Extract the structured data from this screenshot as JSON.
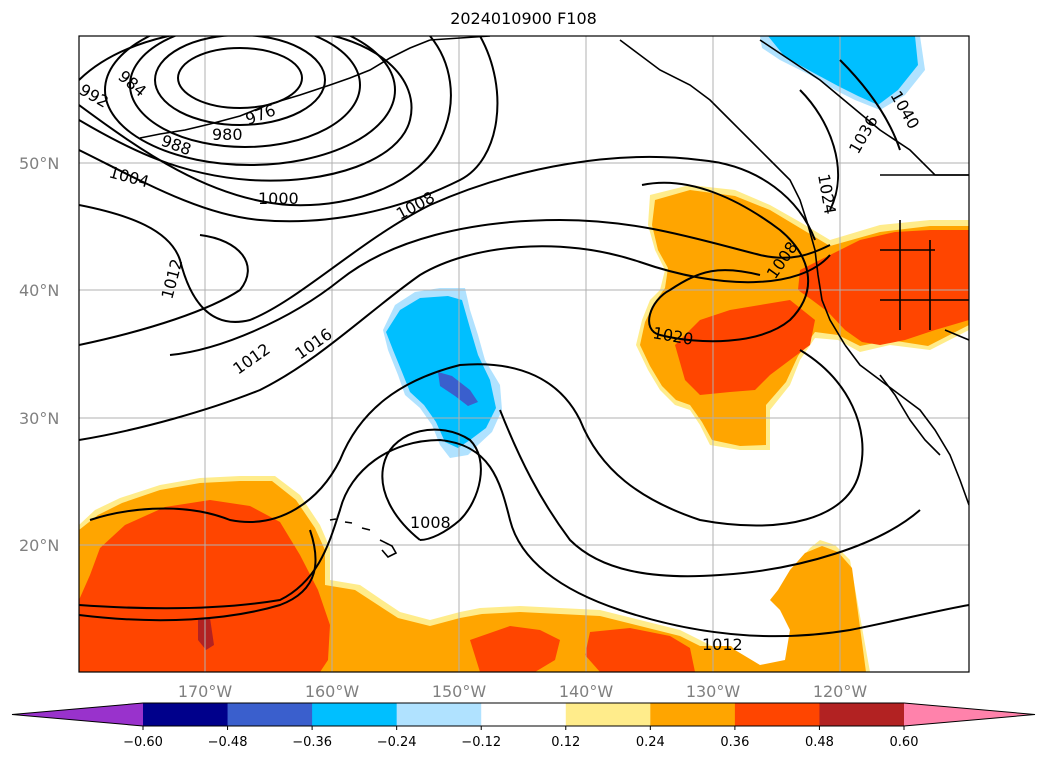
{
  "title": "2024010900 F108",
  "lat_labels": [
    "50°N",
    "40°N",
    "30°N",
    "20°N"
  ],
  "lon_labels": [
    "170°W",
    "160°W",
    "150°W",
    "140°W",
    "130°W",
    "120°W"
  ],
  "colorbar": {
    "ticks": [
      "−0.60",
      "−0.48",
      "−0.36",
      "−0.24",
      "−0.12",
      "0.12",
      "0.24",
      "0.36",
      "0.48",
      "0.60"
    ],
    "colors": [
      "#9932cc",
      "#00008b",
      "#3a5fcd",
      "#00bfff",
      "#b0e2ff",
      "#ffffff",
      "#ffec8b",
      "#ffa500",
      "#ff4500",
      "#b22222",
      "#ff82ab"
    ]
  },
  "isobar_labels": [
    {
      "id": "iso-992",
      "text": "992"
    },
    {
      "id": "iso-984",
      "text": "984"
    },
    {
      "id": "iso-976",
      "text": "976"
    },
    {
      "id": "iso-980",
      "text": "980"
    },
    {
      "id": "iso-988",
      "text": "988"
    },
    {
      "id": "iso-1004",
      "text": "1004"
    },
    {
      "id": "iso-1000",
      "text": "1000"
    },
    {
      "id": "iso-1008a",
      "text": "1008"
    },
    {
      "id": "iso-1012a",
      "text": "1012"
    },
    {
      "id": "iso-1012b",
      "text": "1012"
    },
    {
      "id": "iso-1016",
      "text": "1016"
    },
    {
      "id": "iso-1008b",
      "text": "1008"
    },
    {
      "id": "iso-1020",
      "text": "1020"
    },
    {
      "id": "iso-1008c",
      "text": "1008"
    },
    {
      "id": "iso-1012c",
      "text": "1012"
    },
    {
      "id": "iso-1024",
      "text": "1024"
    },
    {
      "id": "iso-1036",
      "text": "1036"
    },
    {
      "id": "iso-1040",
      "text": "1040"
    }
  ]
}
